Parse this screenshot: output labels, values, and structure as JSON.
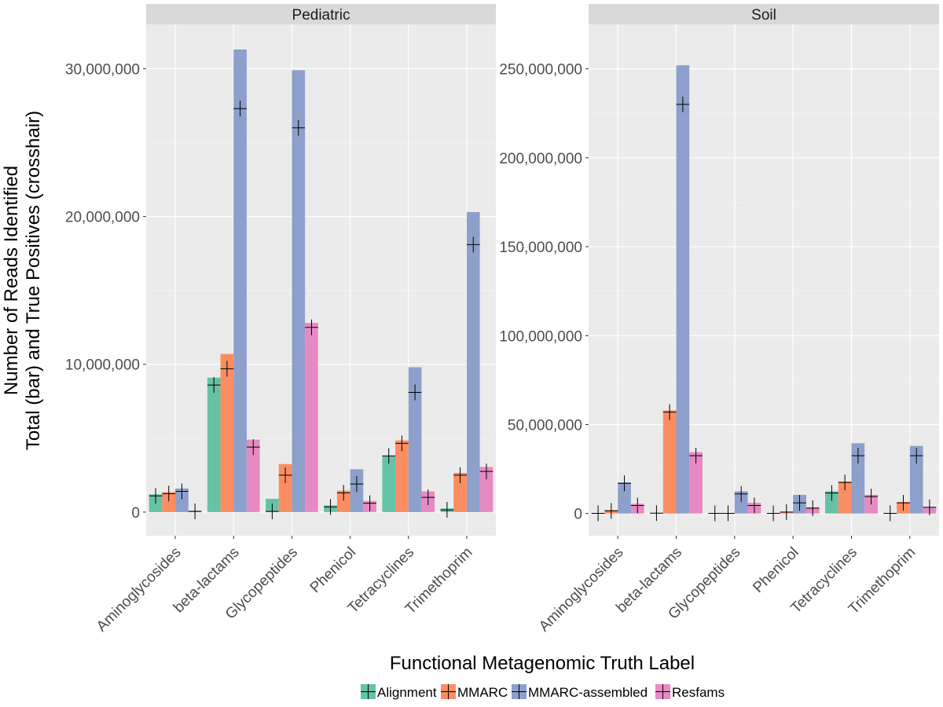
{
  "chart_data": {
    "type": "bar",
    "xlabel": "Functional Metagenomic Truth Label",
    "ylabel_lines": [
      "Number of Reads Identified",
      "Total (bar) and True Positives (crosshair)"
    ],
    "categories": [
      "Aminoglycosides",
      "beta-lactams",
      "Glycopeptides",
      "Phenicol",
      "Tetracyclines",
      "Trimethoprim"
    ],
    "legend": {
      "position": "bottom",
      "items": [
        {
          "name": "Alignment",
          "color": "#66c2a5"
        },
        {
          "name": "MMARC",
          "color": "#fc8d62"
        },
        {
          "name": "MMARC-assembled",
          "color": "#8da0cb"
        },
        {
          "name": "Resfams",
          "color": "#e78ac3"
        }
      ]
    },
    "panels": [
      {
        "title": "Pediatric",
        "ylim": [
          -1600000,
          33000000
        ],
        "yticks": [
          0,
          10000000,
          20000000,
          30000000
        ],
        "ytick_labels": [
          "0",
          "10,000,000",
          "20,000,000",
          "30,000,000"
        ],
        "series": [
          {
            "name": "Alignment",
            "totals": [
              1200000,
              9100000,
              900000,
              450000,
              3800000,
              250000
            ],
            "true_positives": [
              1100000,
              8600000,
              50000,
              350000,
              3800000,
              150000
            ]
          },
          {
            "name": "MMARC",
            "totals": [
              1350000,
              10700000,
              3250000,
              1450000,
              4850000,
              2650000
            ],
            "true_positives": [
              1250000,
              9700000,
              2500000,
              1300000,
              4650000,
              2500000
            ]
          },
          {
            "name": "MMARC-assembled",
            "totals": [
              1600000,
              31300000,
              29900000,
              2900000,
              9800000,
              20300000
            ],
            "true_positives": [
              1400000,
              27300000,
              26000000,
              1900000,
              8100000,
              18100000
            ]
          },
          {
            "name": "Resfams",
            "totals": [
              100000,
              4900000,
              12800000,
              750000,
              1400000,
              3050000
            ],
            "true_positives": [
              50000,
              4400000,
              12500000,
              600000,
              1000000,
              2750000
            ]
          }
        ]
      },
      {
        "title": "Soil",
        "ylim": [
          -12500000,
          275000000
        ],
        "yticks": [
          0,
          50000000,
          100000000,
          150000000,
          200000000,
          250000000
        ],
        "ytick_labels": [
          "0",
          "50,000,000",
          "100,000,000",
          "150,000,000",
          "200,000,000",
          "250,000,000"
        ],
        "series": [
          {
            "name": "Alignment",
            "totals": [
              200000,
              300000,
              200000,
              200000,
              12500000,
              200000
            ],
            "true_positives": [
              100000,
              200000,
              100000,
              100000,
              11500000,
              100000
            ]
          },
          {
            "name": "MMARC",
            "totals": [
              2000000,
              58000000,
              200000,
              1000000,
              18000000,
              6500000
            ],
            "true_positives": [
              1500000,
              57000000,
              100000,
              800000,
              17500000,
              6000000
            ]
          },
          {
            "name": "MMARC-assembled",
            "totals": [
              17500000,
              252000000,
              12500000,
              10500000,
              39500000,
              38000000
            ],
            "true_positives": [
              17000000,
              230000000,
              11000000,
              6000000,
              32500000,
              32500000
            ]
          },
          {
            "name": "Resfams",
            "totals": [
              5500000,
              34500000,
              6000000,
              3500000,
              10500000,
              3500000
            ],
            "true_positives": [
              4500000,
              32500000,
              4500000,
              3000000,
              9500000,
              3500000
            ]
          }
        ]
      }
    ]
  }
}
